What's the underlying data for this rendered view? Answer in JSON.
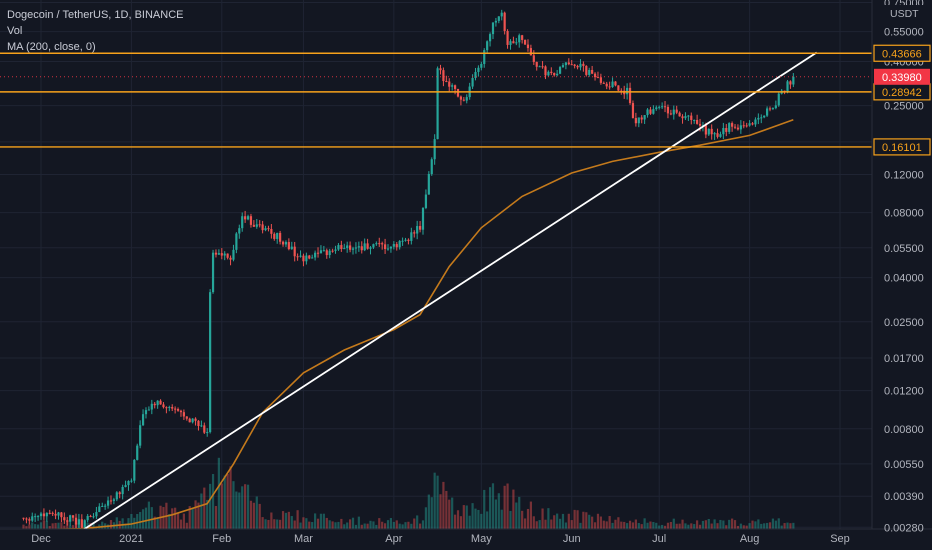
{
  "chart_data": {
    "type": "candlestick",
    "title": "Dogecoin / TetherUS, 1D, BINANCE",
    "indicators": [
      "Vol",
      "MA (200, close, 0)"
    ],
    "y_scale": "log",
    "currency": "USDT",
    "ylim": [
      0.00275,
      0.77
    ],
    "y_ticks": [
      {
        "label": "0.75000",
        "value": 0.75
      },
      {
        "label": "0.55000",
        "value": 0.55
      },
      {
        "label": "0.40000",
        "value": 0.4
      },
      {
        "label": "0.25000",
        "value": 0.25
      },
      {
        "label": "0.17000",
        "value": 0.17
      },
      {
        "label": "0.12000",
        "value": 0.12
      },
      {
        "label": "0.08000",
        "value": 0.08
      },
      {
        "label": "0.05500",
        "value": 0.055
      },
      {
        "label": "0.04000",
        "value": 0.04
      },
      {
        "label": "0.02500",
        "value": 0.025
      },
      {
        "label": "0.01700",
        "value": 0.017
      },
      {
        "label": "0.01200",
        "value": 0.012
      },
      {
        "label": "0.00800",
        "value": 0.008
      },
      {
        "label": "0.00550",
        "value": 0.0055
      },
      {
        "label": "0.00390",
        "value": 0.0039
      },
      {
        "label": "0.00280",
        "value": 0.0028
      }
    ],
    "x_ticks": [
      {
        "label": "Dec",
        "date": "2020-12-01"
      },
      {
        "label": "2021",
        "date": "2021-01-01"
      },
      {
        "label": "Feb",
        "date": "2021-02-01"
      },
      {
        "label": "Mar",
        "date": "2021-03-01"
      },
      {
        "label": "Apr",
        "date": "2021-04-01"
      },
      {
        "label": "May",
        "date": "2021-05-01"
      },
      {
        "label": "Jun",
        "date": "2021-06-01"
      },
      {
        "label": "Jul",
        "date": "2021-07-01"
      },
      {
        "label": "Aug",
        "date": "2021-08-01"
      },
      {
        "label": "Sep",
        "date": "2021-09-01"
      }
    ],
    "horizontal_levels": [
      {
        "label": "0.43666",
        "value": 0.43666,
        "color": "#f7a21b"
      },
      {
        "label": "0.28942",
        "value": 0.28942,
        "color": "#f7a21b"
      },
      {
        "label": "0.16101",
        "value": 0.16101,
        "color": "#f7a21b"
      }
    ],
    "last_price": {
      "label": "0.33980",
      "value": 0.3398,
      "color": "#f23645"
    },
    "trendline": {
      "from": {
        "date": "2020-12-15",
        "price": 0.0027
      },
      "to": {
        "date": "2021-08-24",
        "price": 0.44
      },
      "color": "#ffffff"
    },
    "ma200": {
      "color": "#c47a1c",
      "points": [
        [
          "2020-11-25",
          0.00272
        ],
        [
          "2020-12-15",
          0.00276
        ],
        [
          "2021-01-01",
          0.0029
        ],
        [
          "2021-01-15",
          0.0032
        ],
        [
          "2021-01-27",
          0.0036
        ],
        [
          "2021-02-05",
          0.0055
        ],
        [
          "2021-02-15",
          0.0095
        ],
        [
          "2021-03-01",
          0.0145
        ],
        [
          "2021-03-15",
          0.0185
        ],
        [
          "2021-04-01",
          0.023
        ],
        [
          "2021-04-10",
          0.027
        ],
        [
          "2021-04-20",
          0.045
        ],
        [
          "2021-05-01",
          0.068
        ],
        [
          "2021-05-15",
          0.095
        ],
        [
          "2021-06-01",
          0.122
        ],
        [
          "2021-06-15",
          0.138
        ],
        [
          "2021-07-01",
          0.152
        ],
        [
          "2021-07-15",
          0.164
        ],
        [
          "2021-08-01",
          0.182
        ],
        [
          "2021-08-16",
          0.215
        ]
      ]
    },
    "price_anchors": [
      [
        "2020-11-25",
        0.0031
      ],
      [
        "2020-12-05",
        0.0033
      ],
      [
        "2020-12-15",
        0.0029
      ],
      [
        "2020-12-25",
        0.0038
      ],
      [
        "2021-01-01",
        0.0047
      ],
      [
        "2021-01-05",
        0.0095
      ],
      [
        "2021-01-09",
        0.0105
      ],
      [
        "2021-01-20",
        0.0092
      ],
      [
        "2021-01-27",
        0.0076
      ],
      [
        "2021-01-28",
        0.035
      ],
      [
        "2021-01-29",
        0.053
      ],
      [
        "2021-02-04",
        0.048
      ],
      [
        "2021-02-08",
        0.079
      ],
      [
        "2021-02-10",
        0.074
      ],
      [
        "2021-02-20",
        0.062
      ],
      [
        "2021-03-01",
        0.048
      ],
      [
        "2021-03-15",
        0.056
      ],
      [
        "2021-04-01",
        0.055
      ],
      [
        "2021-04-10",
        0.068
      ],
      [
        "2021-04-15",
        0.17
      ],
      [
        "2021-04-16",
        0.36
      ],
      [
        "2021-04-20",
        0.32
      ],
      [
        "2021-04-25",
        0.26
      ],
      [
        "2021-05-01",
        0.4
      ],
      [
        "2021-05-05",
        0.62
      ],
      [
        "2021-05-08",
        0.68
      ],
      [
        "2021-05-10",
        0.48
      ],
      [
        "2021-05-15",
        0.52
      ],
      [
        "2021-05-20",
        0.38
      ],
      [
        "2021-05-25",
        0.34
      ],
      [
        "2021-06-01",
        0.4
      ],
      [
        "2021-06-10",
        0.33
      ],
      [
        "2021-06-20",
        0.29
      ],
      [
        "2021-06-22",
        0.21
      ],
      [
        "2021-06-30",
        0.25
      ],
      [
        "2021-07-10",
        0.22
      ],
      [
        "2021-07-20",
        0.18
      ],
      [
        "2021-07-25",
        0.2
      ],
      [
        "2021-08-01",
        0.205
      ],
      [
        "2021-08-06",
        0.23
      ],
      [
        "2021-08-10",
        0.26
      ],
      [
        "2021-08-16",
        0.3398
      ]
    ],
    "volume_anchors": [
      [
        "2020-11-25",
        8
      ],
      [
        "2020-12-20",
        6
      ],
      [
        "2021-01-03",
        14
      ],
      [
        "2021-01-10",
        30
      ],
      [
        "2021-01-20",
        12
      ],
      [
        "2021-01-28",
        70
      ],
      [
        "2021-02-04",
        55
      ],
      [
        "2021-02-15",
        20
      ],
      [
        "2021-03-15",
        10
      ],
      [
        "2021-04-10",
        12
      ],
      [
        "2021-04-16",
        55
      ],
      [
        "2021-04-25",
        20
      ],
      [
        "2021-05-08",
        45
      ],
      [
        "2021-05-20",
        22
      ],
      [
        "2021-06-15",
        10
      ],
      [
        "2021-07-15",
        8
      ],
      [
        "2021-08-16",
        9
      ]
    ]
  },
  "axis_labels": {
    "currency": "USDT"
  }
}
